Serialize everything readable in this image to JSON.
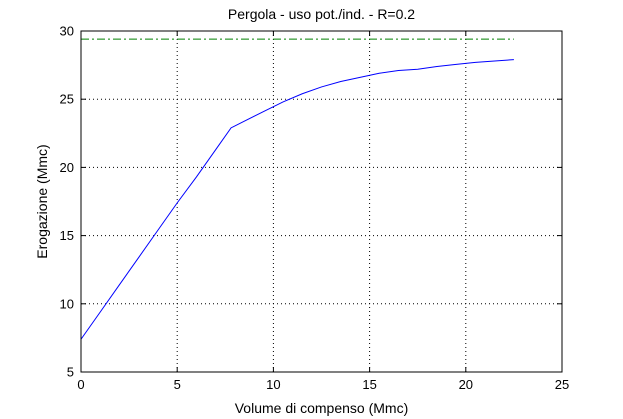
{
  "chart_data": {
    "type": "line",
    "title": "Pergola  -  uso pot./ind.  -   R=0.2",
    "xlabel": "Volume di compenso (Mmc)",
    "ylabel": "Erogazione (Mmc)",
    "xlim": [
      0,
      25
    ],
    "ylim": [
      5,
      30
    ],
    "xticks": [
      0,
      5,
      10,
      15,
      20,
      25
    ],
    "yticks": [
      5,
      10,
      15,
      20,
      25,
      30
    ],
    "grid": true,
    "series": [
      {
        "color": "#0000ff",
        "style": "solid",
        "x": [
          0,
          1,
          2,
          3,
          4,
          5,
          6,
          7,
          7.8,
          8.5,
          9.5,
          10.5,
          11.5,
          12.5,
          13.5,
          14.5,
          15.5,
          16.5,
          17.5,
          18.5,
          19.5,
          20.5,
          21.5,
          22.5
        ],
        "y": [
          7.4,
          9.4,
          11.4,
          13.4,
          15.4,
          17.4,
          19.3,
          21.3,
          22.9,
          23.4,
          24.1,
          24.8,
          25.4,
          25.9,
          26.3,
          26.6,
          26.9,
          27.1,
          27.2,
          27.4,
          27.55,
          27.7,
          27.8,
          27.9
        ]
      },
      {
        "color": "#008000",
        "style": "dashdot",
        "x": [
          0,
          22.5
        ],
        "y": [
          29.4,
          29.4
        ]
      }
    ]
  }
}
